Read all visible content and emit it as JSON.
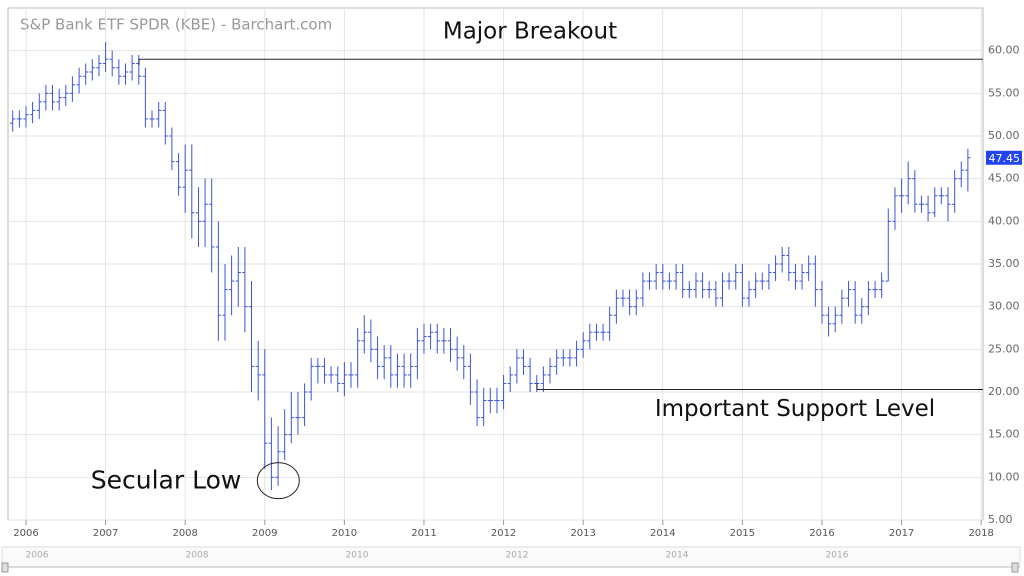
{
  "chart_data": {
    "type": "ohlc",
    "title": "S&P Bank ETF SPDR (KBE) - Barchart.com",
    "color": "#3b55dd",
    "grid": true,
    "xlim": [
      2005.774,
      2018.023
    ],
    "xticks": [
      2006,
      2007,
      2008,
      2009,
      2010,
      2011,
      2012,
      2013,
      2014,
      2015,
      2016,
      2017,
      2018
    ],
    "ylim": [
      5,
      65
    ],
    "yticks": [
      {
        "value": 5,
        "label": "5.00"
      },
      {
        "value": 10,
        "label": "10.00"
      },
      {
        "value": 15,
        "label": "15.00"
      },
      {
        "value": 20,
        "label": "20.00"
      },
      {
        "value": 25,
        "label": "25.00"
      },
      {
        "value": 30,
        "label": "30.00"
      },
      {
        "value": 35,
        "label": "35.00"
      },
      {
        "value": 40,
        "label": "40.00"
      },
      {
        "value": 45,
        "label": "45.00"
      },
      {
        "value": 50,
        "label": "50.00"
      },
      {
        "value": 55,
        "label": "55.00"
      },
      {
        "value": 60,
        "label": "60.00"
      }
    ],
    "navigator_ticks": [
      2006,
      2008,
      2010,
      2012,
      2014,
      2016
    ],
    "x": [
      2005.833,
      2005.917,
      2006,
      2006.083,
      2006.167,
      2006.25,
      2006.333,
      2006.417,
      2006.5,
      2006.583,
      2006.667,
      2006.75,
      2006.833,
      2006.917,
      2007,
      2007.083,
      2007.167,
      2007.25,
      2007.333,
      2007.417,
      2007.5,
      2007.583,
      2007.667,
      2007.75,
      2007.833,
      2007.917,
      2008,
      2008.083,
      2008.167,
      2008.25,
      2008.333,
      2008.417,
      2008.5,
      2008.583,
      2008.667,
      2008.75,
      2008.833,
      2008.917,
      2009,
      2009.083,
      2009.167,
      2009.25,
      2009.333,
      2009.417,
      2009.5,
      2009.583,
      2009.667,
      2009.75,
      2009.833,
      2009.917,
      2010,
      2010.083,
      2010.167,
      2010.25,
      2010.333,
      2010.417,
      2010.5,
      2010.583,
      2010.667,
      2010.75,
      2010.833,
      2010.917,
      2011,
      2011.083,
      2011.167,
      2011.25,
      2011.333,
      2011.417,
      2011.5,
      2011.583,
      2011.667,
      2011.75,
      2011.833,
      2011.917,
      2012,
      2012.083,
      2012.167,
      2012.25,
      2012.333,
      2012.417,
      2012.5,
      2012.583,
      2012.667,
      2012.75,
      2012.833,
      2012.917,
      2013,
      2013.083,
      2013.167,
      2013.25,
      2013.333,
      2013.417,
      2013.5,
      2013.583,
      2013.667,
      2013.75,
      2013.833,
      2013.917,
      2014,
      2014.083,
      2014.167,
      2014.25,
      2014.333,
      2014.417,
      2014.5,
      2014.583,
      2014.667,
      2014.75,
      2014.833,
      2014.917,
      2015,
      2015.083,
      2015.167,
      2015.25,
      2015.333,
      2015.417,
      2015.5,
      2015.583,
      2015.667,
      2015.75,
      2015.833,
      2015.917,
      2016,
      2016.083,
      2016.167,
      2016.25,
      2016.333,
      2016.417,
      2016.5,
      2016.583,
      2016.667,
      2016.75,
      2016.833,
      2016.917,
      2017,
      2017.083,
      2017.167,
      2017.25,
      2017.333,
      2017.417,
      2017.5,
      2017.583,
      2017.667,
      2017.75,
      2017.833
    ],
    "open": [
      51.5,
      52,
      52,
      52.5,
      53,
      54,
      55,
      54,
      54.5,
      55,
      56,
      57,
      57.5,
      58,
      58.5,
      59,
      58,
      57,
      57.5,
      58.5,
      57,
      52,
      52,
      53,
      50,
      47,
      44,
      46,
      41,
      40,
      42,
      37,
      29,
      32,
      33,
      34,
      30,
      23,
      22,
      14,
      10,
      13,
      15,
      17,
      17,
      20,
      23,
      23,
      22,
      22,
      21,
      22,
      22,
      26,
      27,
      25,
      23,
      24,
      22,
      23,
      22,
      23,
      26,
      26.5,
      27,
      26,
      26,
      25,
      24,
      23,
      20,
      17,
      19,
      19,
      19,
      21,
      22,
      24,
      23,
      21,
      21,
      22,
      23,
      24,
      24,
      24,
      25,
      26,
      27,
      27,
      27,
      29,
      31,
      31,
      30,
      31,
      33,
      33,
      34,
      33,
      33,
      34,
      32,
      32,
      33,
      32,
      32,
      31,
      33,
      33,
      34,
      31,
      32,
      33,
      33,
      34,
      35,
      36,
      34,
      33,
      34,
      35,
      32,
      29,
      28,
      29,
      31,
      32,
      29,
      30,
      32,
      32,
      33,
      40,
      43,
      43,
      45,
      42,
      42,
      41,
      43,
      43,
      42,
      45,
      46
    ],
    "high": [
      53,
      53,
      53.5,
      54,
      55,
      56,
      56,
      55.5,
      56,
      57,
      58,
      58.5,
      59,
      59.5,
      61,
      60,
      59,
      58.5,
      59.5,
      59.5,
      58,
      53,
      54,
      54,
      51,
      48,
      49,
      49,
      44,
      45,
      45,
      40,
      35,
      36,
      37,
      37,
      33,
      26,
      25,
      17,
      16,
      18,
      20,
      20,
      21,
      24,
      24,
      24,
      23,
      23,
      23.5,
      23.5,
      27.5,
      29,
      28.5,
      26.5,
      25.5,
      25.5,
      24.5,
      24.5,
      24.5,
      27.5,
      28,
      28,
      28,
      27.5,
      27.5,
      26.5,
      25.5,
      24.5,
      21.5,
      20.5,
      20.5,
      20.5,
      22,
      23,
      25,
      25,
      24,
      22,
      23,
      24,
      25,
      25,
      25,
      26,
      27,
      28,
      28,
      28,
      30,
      32,
      32,
      32,
      32,
      34,
      34,
      35,
      35,
      34,
      35,
      35,
      33,
      34,
      34,
      33,
      33,
      34,
      34,
      35,
      35,
      33,
      34,
      34,
      35,
      36,
      37,
      37,
      35,
      35,
      36,
      36,
      33,
      30,
      30,
      32,
      33,
      33,
      31,
      33,
      33,
      34,
      41.5,
      44,
      45,
      47,
      46,
      43,
      43,
      44,
      44,
      44,
      46,
      47,
      48.5
    ],
    "low": [
      50.5,
      51,
      51,
      51.5,
      52,
      53,
      53,
      53,
      53.5,
      54,
      55,
      56,
      56.5,
      57,
      57.5,
      57,
      56,
      56,
      56.5,
      56,
      51,
      51,
      51,
      49,
      46,
      43,
      41,
      38,
      37,
      37,
      34,
      26,
      26,
      29,
      30,
      27,
      20,
      19,
      11,
      8.5,
      9,
      12,
      14,
      15,
      16,
      19,
      21,
      21,
      21,
      20,
      19.5,
      20.5,
      20.5,
      24.5,
      23.5,
      21.5,
      21.5,
      20.5,
      20.5,
      20.5,
      20.5,
      21.5,
      24.5,
      25,
      24.5,
      24.5,
      23.5,
      22.5,
      21.5,
      18.5,
      16,
      16,
      17.5,
      17.5,
      18,
      20,
      21,
      22,
      20,
      20,
      20,
      21,
      22,
      23,
      23,
      23,
      24,
      25,
      26,
      26,
      26,
      28,
      30,
      29,
      29,
      30,
      32,
      32,
      32,
      32,
      32,
      31,
      31,
      31,
      31,
      31,
      30,
      30,
      32,
      32,
      30,
      30,
      31,
      32,
      32,
      33,
      34,
      33,
      32,
      32,
      33,
      30,
      28,
      26.5,
      27,
      28,
      30,
      28,
      28,
      29,
      31,
      31,
      33,
      39,
      41,
      42,
      41,
      41,
      40,
      40.5,
      42,
      40,
      41,
      44,
      43.5
    ],
    "close": [
      52,
      52,
      52.5,
      53,
      54,
      55,
      54,
      54.5,
      55,
      56,
      57,
      57.5,
      58,
      58.5,
      59,
      58,
      57,
      57.5,
      58.5,
      57,
      52,
      52,
      53,
      50,
      47,
      44,
      46,
      41,
      40,
      42,
      37,
      29,
      32,
      33,
      34,
      30,
      23,
      22,
      14,
      10,
      13,
      15,
      17,
      17,
      20,
      23,
      23,
      22,
      22,
      21,
      22,
      22,
      26,
      27,
      25,
      23,
      24,
      22,
      23,
      22,
      23,
      26,
      26.5,
      27,
      26,
      26,
      25,
      24,
      23,
      20,
      17,
      19,
      19,
      19,
      21,
      22,
      24,
      23,
      21,
      21,
      22,
      23,
      24,
      24,
      24,
      25,
      26,
      27,
      27,
      27,
      29,
      31,
      31,
      30,
      31,
      33,
      33,
      34,
      33,
      33,
      34,
      32,
      32,
      33,
      32,
      32,
      31,
      33,
      33,
      34,
      31,
      32,
      33,
      33,
      34,
      35,
      36,
      34,
      33,
      34,
      35,
      32,
      29,
      28,
      29,
      31,
      32,
      29,
      30,
      32,
      32,
      33,
      40,
      43,
      43,
      45,
      42,
      42,
      41,
      43,
      43,
      42,
      45,
      46,
      47.45
    ],
    "reference_lines": [
      {
        "label": "Major Breakout",
        "value": 59,
        "x_start": 2007.42
      },
      {
        "label": "Important Support Level",
        "value": 20.3,
        "x_start": 2012.42
      }
    ],
    "annotations": [
      {
        "text": "Secular Low",
        "x": 2009.17,
        "y": 9.5
      }
    ]
  }
}
